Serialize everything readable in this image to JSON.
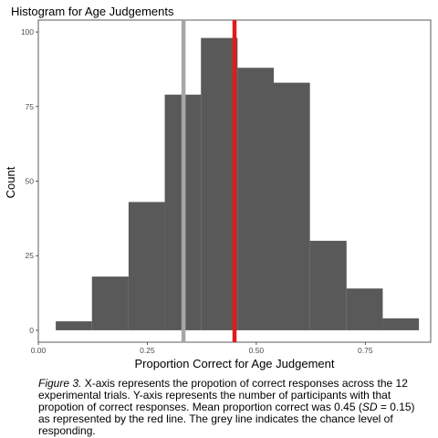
{
  "chart_data": {
    "type": "bar",
    "title": "Histogram for Age Judgements",
    "xlabel": "Proportion Correct for Age Judgement",
    "ylabel": "Count",
    "xlim": [
      0,
      0.9
    ],
    "ylim": [
      -4,
      104
    ],
    "x_ticks": [
      0,
      0.25,
      0.5,
      0.75
    ],
    "x_tick_labels": [
      "0.00",
      "0.25",
      "0.50",
      "0.75"
    ],
    "y_ticks": [
      0,
      25,
      50,
      75,
      100
    ],
    "y_tick_labels": [
      "0",
      "25",
      "50",
      "75",
      "100"
    ],
    "bin_width": 0.0833,
    "bins": [
      {
        "x0": 0.04,
        "x1": 0.123,
        "count": 3
      },
      {
        "x0": 0.123,
        "x1": 0.207,
        "count": 18
      },
      {
        "x0": 0.207,
        "x1": 0.29,
        "count": 43
      },
      {
        "x0": 0.29,
        "x1": 0.373,
        "count": 79
      },
      {
        "x0": 0.373,
        "x1": 0.457,
        "count": 98
      },
      {
        "x0": 0.457,
        "x1": 0.54,
        "count": 88
      },
      {
        "x0": 0.54,
        "x1": 0.623,
        "count": 83
      },
      {
        "x0": 0.623,
        "x1": 0.707,
        "count": 30
      },
      {
        "x0": 0.707,
        "x1": 0.79,
        "count": 14
      },
      {
        "x0": 0.79,
        "x1": 0.873,
        "count": 4
      }
    ],
    "bar_color": "#595959",
    "reference_lines": [
      {
        "x": 0.333,
        "color": "#a6a6a6"
      },
      {
        "x": 0.45,
        "color": "#e31a1c"
      }
    ],
    "grid": false,
    "legend": "none"
  },
  "caption": {
    "label": "Figure 3.",
    "text1": " X-axis represents the propotion of correct responses across the 12 experimental trials. Y-axis represents the number of participants with that propotion of correct responses. Mean proportion correct was 0.45 (",
    "sd_label": "SD",
    "text2": " = 0.15) as represented by the red line. The grey line indicates the chance level of responding."
  }
}
